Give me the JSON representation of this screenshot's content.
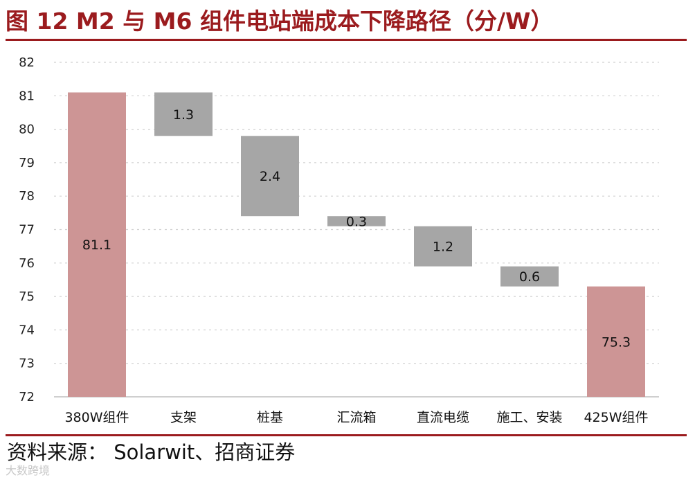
{
  "header": {
    "title": "图 12 M2 与 M6 组件电站端成本下降路径（分/W）"
  },
  "footer": {
    "source": "资料来源：  Solarwit、招商证券",
    "watermark": "大数跨境"
  },
  "chart_data": {
    "type": "bar",
    "subtype": "waterfall",
    "title": "图 12 M2 与 M6 组件电站端成本下降路径（分/W）",
    "xlabel": "",
    "ylabel": "",
    "ylim": [
      72,
      82
    ],
    "yticks": [
      72,
      73,
      74,
      75,
      76,
      77,
      78,
      79,
      80,
      81,
      82
    ],
    "grid": true,
    "legend": "none",
    "categories": [
      "380W组件",
      "支架",
      "桩基",
      "汇流箱",
      "直流电缆",
      "施工、安装",
      "425W组件"
    ],
    "bars": [
      {
        "category": "380W组件",
        "kind": "total",
        "bottom": 72,
        "top": 81.1,
        "label": "81.1"
      },
      {
        "category": "支架",
        "kind": "decrease",
        "bottom": 79.8,
        "top": 81.1,
        "label": "1.3"
      },
      {
        "category": "桩基",
        "kind": "decrease",
        "bottom": 77.4,
        "top": 79.8,
        "label": "2.4"
      },
      {
        "category": "汇流箱",
        "kind": "decrease",
        "bottom": 77.1,
        "top": 77.4,
        "label": "0.3"
      },
      {
        "category": "直流电缆",
        "kind": "decrease",
        "bottom": 75.9,
        "top": 77.1,
        "label": "1.2"
      },
      {
        "category": "施工、安装",
        "kind": "decrease",
        "bottom": 75.3,
        "top": 75.9,
        "label": "0.6"
      },
      {
        "category": "425W组件",
        "kind": "total",
        "bottom": 72,
        "top": 75.3,
        "label": "75.3"
      }
    ],
    "colors": {
      "total": "#cd9595",
      "decrease": "#a6a6a6",
      "grid": "#d0d0d0",
      "axis": "#bfbfbf"
    }
  }
}
